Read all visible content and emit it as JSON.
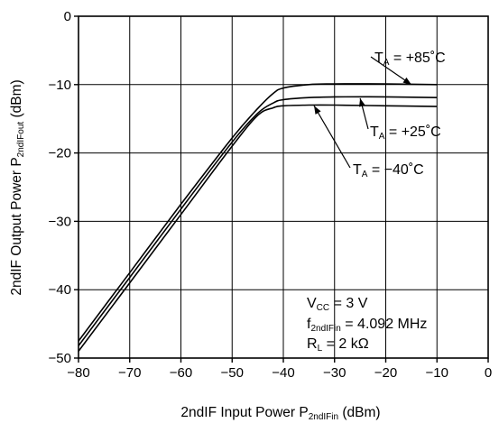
{
  "chart_data": {
    "type": "line",
    "xlabel": {
      "main": "2ndIF Input Power  P",
      "sub": "2ndIFin",
      "unit": " (dBm)"
    },
    "ylabel": {
      "main": "2ndIF Output Power  P",
      "sub": "2ndIFout",
      "unit": " (dBm)"
    },
    "xlim": [
      -80,
      0
    ],
    "ylim": [
      -50,
      0
    ],
    "x_ticks": [
      -80,
      -70,
      -60,
      -50,
      -40,
      -30,
      -20,
      -10,
      0
    ],
    "y_ticks": [
      0,
      -10,
      -20,
      -30,
      -40,
      -50
    ],
    "x_tick_labels": [
      "−80",
      "−70",
      "−60",
      "−50",
      "−40",
      "−30",
      "−20",
      "−10",
      "0"
    ],
    "y_tick_labels": [
      "0",
      "−10",
      "−20",
      "−30",
      "−40",
      "−50"
    ],
    "grid": true,
    "series": [
      {
        "name": "TA = +85°C",
        "x": [
          -80,
          -70,
          -60,
          -50,
          -45,
          -42,
          -40,
          -35,
          -30,
          -20,
          -10
        ],
        "y": [
          -47.5,
          -37.5,
          -27.5,
          -17.8,
          -13.5,
          -11.3,
          -10.5,
          -10.0,
          -9.9,
          -9.9,
          -10.0
        ]
      },
      {
        "name": "TA = +25°C",
        "x": [
          -80,
          -70,
          -60,
          -50,
          -45,
          -42,
          -40,
          -35,
          -30,
          -20,
          -10
        ],
        "y": [
          -48.2,
          -38.2,
          -28.2,
          -18.4,
          -14.2,
          -12.7,
          -12.2,
          -11.9,
          -11.8,
          -11.8,
          -11.9
        ]
      },
      {
        "name": "TA = −40°C",
        "x": [
          -80,
          -70,
          -60,
          -50,
          -45,
          -42,
          -40,
          -35,
          -30,
          -20,
          -10
        ],
        "y": [
          -49.0,
          -39.0,
          -29.0,
          -19.0,
          -14.5,
          -13.4,
          -13.1,
          -13.0,
          -13.0,
          -13.1,
          -13.2
        ]
      }
    ],
    "annotations": [
      {
        "label": "T",
        "sub": "A",
        "rest": " = +85˚C"
      },
      {
        "label": "T",
        "sub": "A",
        "rest": " = +25˚C"
      },
      {
        "label": "T",
        "sub": "A",
        "rest": " = −40˚C"
      }
    ],
    "conditions": [
      {
        "main": "V",
        "sub": "CC",
        "rest": " = 3 V"
      },
      {
        "main": "f",
        "sub": "2ndIFin",
        "rest": " = 4.092 MHz"
      },
      {
        "main": "R",
        "sub": "L",
        "rest": " = 2 kΩ"
      }
    ]
  }
}
